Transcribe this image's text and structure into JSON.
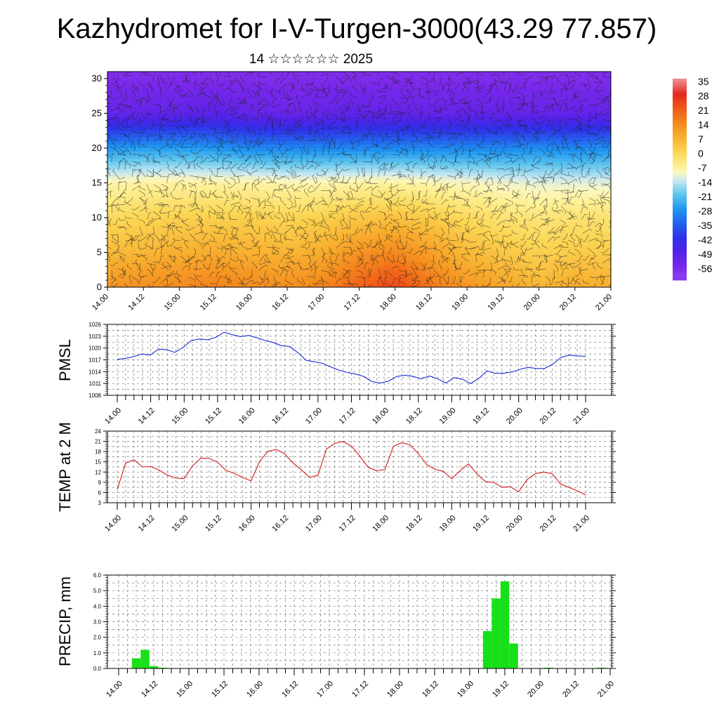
{
  "page": {
    "title": "Kazhydromet for I-V-Turgen-3000(43.29 77.857)",
    "subtitle": "14 ☆☆☆☆☆☆ 2025"
  },
  "chart_data": [
    {
      "type": "heatmap",
      "name": "vertical-cross-section",
      "y_ticks": [
        0,
        5,
        10,
        15,
        20,
        25,
        30
      ],
      "ylim": [
        0,
        31
      ],
      "x_ticks": [
        "14.00",
        "14.12",
        "15.00",
        "15.12",
        "16.00",
        "16.12",
        "17.00",
        "17.12",
        "18.00",
        "18.12",
        "19.00",
        "19.12",
        "20.00",
        "20.12",
        "21.00"
      ],
      "colorbar_labels": [
        "35",
        "28",
        "21",
        "14",
        "7",
        "0",
        "-7",
        "-14",
        "-21",
        "-28",
        "-35",
        "-42",
        "-49",
        "-56"
      ],
      "colorbar_colors": [
        "#f4c6c6",
        "#e23a2a",
        "#f05a18",
        "#f48a1e",
        "#f8b030",
        "#fbd650",
        "#fdf4a0",
        "#d6ecf2",
        "#5cc4ee",
        "#1e9af0",
        "#2a5cf0",
        "#3a2ee6",
        "#6a22e6",
        "#8a3aee"
      ],
      "temperature_levels_c": [
        {
          "level": 0,
          "values": [
            12,
            13,
            14,
            15,
            14,
            13,
            15,
            20,
            24,
            17,
            12,
            9,
            6,
            8,
            7
          ]
        },
        {
          "level": 5,
          "values": [
            5,
            6,
            7,
            8,
            7,
            6,
            8,
            12,
            14,
            10,
            5,
            3,
            1,
            2,
            2
          ]
        },
        {
          "level": 10,
          "values": [
            -1,
            0,
            1,
            1,
            1,
            0,
            1,
            3,
            4,
            2,
            -1,
            -3,
            -4,
            -3,
            -3
          ]
        },
        {
          "level": 15,
          "values": [
            -9,
            -8,
            -8,
            -8,
            -8,
            -9,
            -9,
            -8,
            -8,
            -9,
            -10,
            -11,
            -12,
            -12,
            -12
          ]
        },
        {
          "level": 20,
          "values": [
            -28,
            -27,
            -27,
            -28,
            -30,
            -30,
            -30,
            -30,
            -30,
            -30,
            -30,
            -30,
            -29,
            -30,
            -29
          ]
        },
        {
          "level": 25,
          "values": [
            -52,
            -52,
            -51,
            -50,
            -52,
            -53,
            -52,
            -51,
            -52,
            -52,
            -52,
            -52,
            -52,
            -52,
            -52
          ]
        },
        {
          "level": 30,
          "values": [
            -57,
            -57,
            -57,
            -57,
            -57,
            -57,
            -57,
            -57,
            -57,
            -57,
            -57,
            -57,
            -57,
            -57,
            -57
          ]
        }
      ]
    },
    {
      "type": "line",
      "name": "pmsl",
      "ylabel": "PMSL",
      "y_ticks": [
        1008,
        1011,
        1014,
        1017,
        1020,
        1023,
        1026
      ],
      "ylim": [
        1008,
        1026
      ],
      "x_ticks": [
        "14.00",
        "14.12",
        "15.00",
        "15.12",
        "16.00",
        "16.12",
        "17.00",
        "17.12",
        "18.00",
        "18.12",
        "19.00",
        "19.12",
        "20.00",
        "20.12",
        "21.00"
      ],
      "color": "#1a2bd6",
      "values": [
        1017.1,
        1017.4,
        1017.8,
        1018.5,
        1018.2,
        1019.7,
        1019.6,
        1018.9,
        1020.1,
        1021.9,
        1022.3,
        1022.1,
        1022.7,
        1024.0,
        1023.4,
        1022.9,
        1023.2,
        1022.6,
        1021.9,
        1021.4,
        1020.6,
        1020.4,
        1018.8,
        1016.9,
        1016.5,
        1016.1,
        1015.2,
        1014.4,
        1013.8,
        1013.4,
        1012.8,
        1011.5,
        1011.1,
        1011.6,
        1012.8,
        1013.1,
        1012.8,
        1012.2,
        1012.9,
        1012.2,
        1011.1,
        1012.5,
        1012.1,
        1011.0,
        1012.3,
        1014.2,
        1013.6,
        1013.6,
        1013.9,
        1014.6,
        1015.1,
        1014.8,
        1014.8,
        1015.9,
        1017.6,
        1018.2,
        1018.0,
        1017.9
      ]
    },
    {
      "type": "line",
      "name": "temp-2m",
      "ylabel": "TEMP at 2 M",
      "y_ticks": [
        3,
        6,
        9,
        12,
        15,
        18,
        21,
        24
      ],
      "ylim": [
        3,
        24
      ],
      "x_ticks": [
        "14.00",
        "14.12",
        "15.00",
        "15.12",
        "16.00",
        "16.12",
        "17.00",
        "17.12",
        "18.00",
        "18.12",
        "19.00",
        "19.12",
        "20.00",
        "20.12",
        "21.00"
      ],
      "color": "#d61a1a",
      "values": [
        6.9,
        14.6,
        15.6,
        13.5,
        13.6,
        12.6,
        11.1,
        10.2,
        10.1,
        13.8,
        16.1,
        16.0,
        14.9,
        12.5,
        11.6,
        10.4,
        9.4,
        15.0,
        18.1,
        18.6,
        17.4,
        14.7,
        12.7,
        10.4,
        11.1,
        18.7,
        20.4,
        21.0,
        19.6,
        16.7,
        13.4,
        12.4,
        12.7,
        19.5,
        20.6,
        20.0,
        17.4,
        14.2,
        12.8,
        12.2,
        10.0,
        12.4,
        14.4,
        11.5,
        9.2,
        9.0,
        7.5,
        7.7,
        6.2,
        9.8,
        11.5,
        12.0,
        11.5,
        8.5,
        7.5,
        6.5,
        5.3
      ]
    },
    {
      "type": "bar",
      "name": "precip",
      "ylabel": "PRECIP, mm",
      "y_ticks": [
        "0.0",
        "1.0",
        "2.0",
        "3.0",
        "4.0",
        "5.0",
        "6.0"
      ],
      "ylim": [
        0,
        6
      ],
      "x_ticks": [
        "14.00",
        "14.12",
        "15.00",
        "15.12",
        "16.00",
        "16.12",
        "17.00",
        "17.12",
        "18.00",
        "18.12",
        "19.00",
        "19.12",
        "20.00",
        "20.12",
        "21.00"
      ],
      "color": "#18e018",
      "values": [
        0.0,
        0.0,
        0.65,
        1.2,
        0.15,
        0.05,
        0,
        0,
        0,
        0,
        0,
        0,
        0,
        0,
        0,
        0,
        0,
        0,
        0,
        0,
        0,
        0,
        0,
        0,
        0,
        0,
        0,
        0,
        0,
        0,
        0,
        0,
        0,
        0,
        0,
        0,
        0,
        0,
        0,
        0,
        0,
        0,
        2.4,
        4.5,
        5.6,
        1.6,
        0,
        0,
        0,
        0.05,
        0,
        0,
        0,
        0,
        0,
        0.05,
        0
      ]
    }
  ]
}
